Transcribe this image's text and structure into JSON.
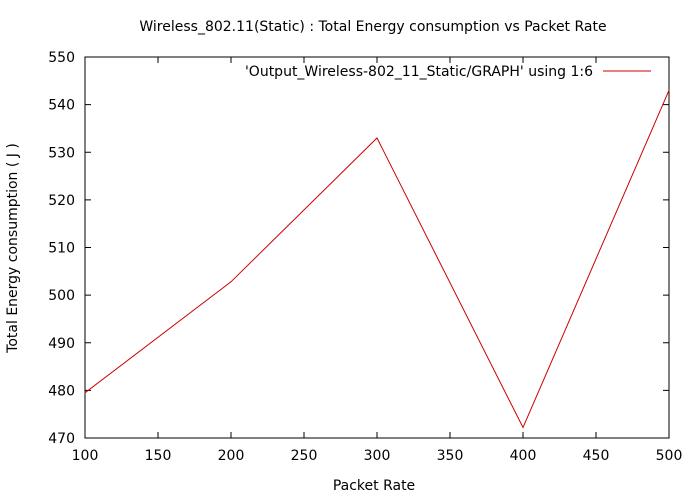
{
  "chart_data": {
    "type": "line",
    "title": "Wireless_802.11(Static) : Total Energy consumption vs Packet Rate",
    "xlabel": "Packet Rate",
    "ylabel": "Total Energy consumption ( J )",
    "xlim": [
      100,
      500
    ],
    "ylim": [
      470,
      550
    ],
    "xticks": [
      100,
      150,
      200,
      250,
      300,
      350,
      400,
      450,
      500
    ],
    "yticks": [
      470,
      480,
      490,
      500,
      510,
      520,
      530,
      540,
      550
    ],
    "grid": false,
    "legend_position": "top-right",
    "series": [
      {
        "name": "'Output_Wireless-802_11_Static/GRAPH' using 1:6",
        "color": "#cc0000",
        "x": [
          100,
          200,
          300,
          400,
          500
        ],
        "y": [
          479.5,
          502.8,
          533.0,
          472.2,
          543.0
        ]
      }
    ]
  }
}
